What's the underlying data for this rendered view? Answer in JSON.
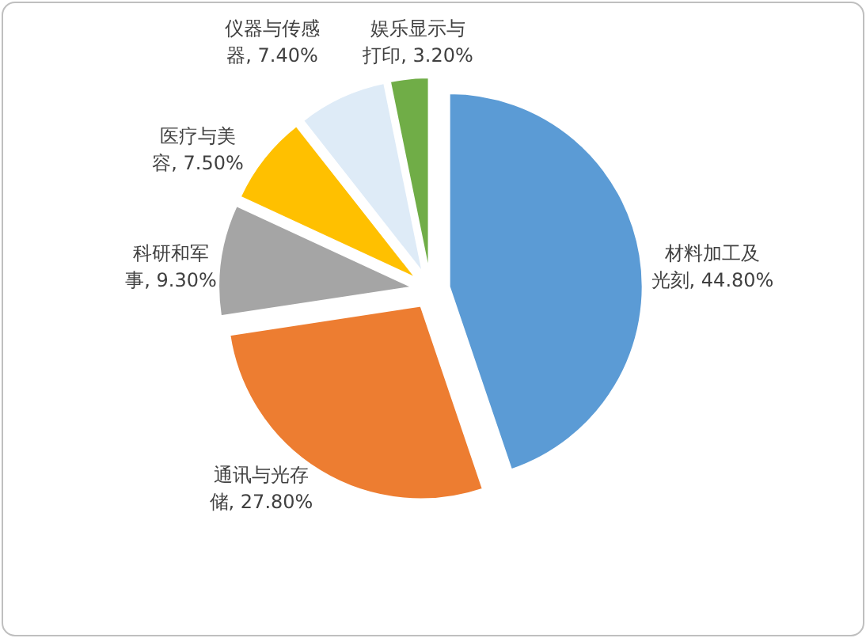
{
  "chart_data": {
    "type": "pie",
    "categories": [
      "材料加工及光刻",
      "通讯与光存储",
      "科研和军事",
      "医疗与美容",
      "仪器与传感器",
      "娱乐显示与打印"
    ],
    "values": [
      44.8,
      27.8,
      9.3,
      7.5,
      7.4,
      3.2
    ],
    "colors": [
      "#5b9bd5",
      "#ed7d31",
      "#a5a5a5",
      "#ffc000",
      "#deebf7",
      "#70ad47"
    ],
    "value_labels": [
      "44.80%",
      "27.80%",
      "9.30%",
      "7.50%",
      "7.40%",
      "3.20%"
    ]
  }
}
